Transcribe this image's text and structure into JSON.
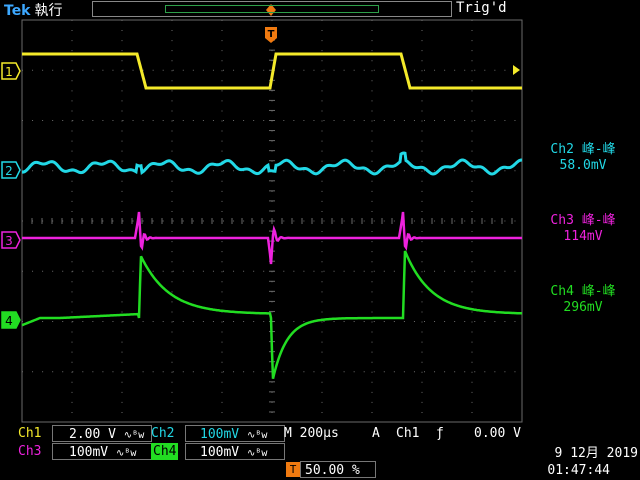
{
  "header": {
    "brand": "Tek",
    "run_state": "執行",
    "trigger_state": "Trig'd"
  },
  "trigger_marker": {
    "label": "T"
  },
  "channel_markers": [
    "1",
    "2",
    "3",
    "4"
  ],
  "colors": {
    "ch1": "#f4ea2a",
    "ch2": "#22d8e6",
    "ch3": "#ee22dd",
    "ch4": "#22dd22",
    "grid": "#6a6a6a",
    "trigger": "#f07a10"
  },
  "measurements": [
    {
      "label": "Ch2 峰-峰",
      "value": "58.0mV",
      "color": "#22d8e6"
    },
    {
      "label": "Ch3 峰-峰",
      "value": "114mV",
      "color": "#ee22dd"
    },
    {
      "label": "Ch4 峰-峰",
      "value": "296mV",
      "color": "#22dd22"
    }
  ],
  "settings": {
    "ch1": {
      "name": "Ch1",
      "scale": "2.00 V",
      "coupling": "∿ᴮw"
    },
    "ch2": {
      "name": "Ch2",
      "scale": "100mV",
      "coupling": "∿ᴮw"
    },
    "ch3": {
      "name": "Ch3",
      "scale": "100mV",
      "coupling": "∿ᴮw"
    },
    "ch4": {
      "name": "Ch4",
      "scale": "100mV",
      "coupling": "∿ᴮw"
    },
    "timebase": {
      "prefix": "M",
      "value": "200µs"
    },
    "trigger": {
      "mode": "A",
      "source": "Ch1",
      "slope": "ƒ",
      "level": "0.00 V"
    },
    "position": {
      "icon": "T",
      "value": "50.00 %"
    }
  },
  "datetime": {
    "date": "9 12月 2019",
    "time": "01:47:44"
  }
}
